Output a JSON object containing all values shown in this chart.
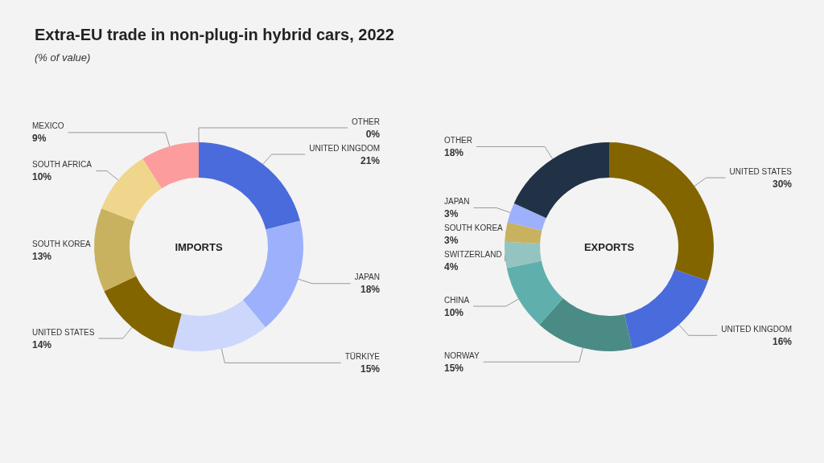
{
  "chart_data": [
    {
      "type": "donut",
      "title": "Extra-EU trade in non-plug-in hybrid cars, 2022",
      "subtitle": "(% of value)",
      "annotations": [
        "IMPORTS"
      ],
      "categories": [
        "UNITED KINGDOM",
        "JAPAN",
        "TÜRKIYE",
        "UNITED STATES",
        "SOUTH KOREA",
        "SOUTH AFRICA",
        "MEXICO",
        "OTHER"
      ],
      "values": [
        21,
        18,
        15,
        14,
        13,
        10,
        9,
        0
      ],
      "value_labels": [
        "21%",
        "18%",
        "15%",
        "14%",
        "13%",
        "10%",
        "9%",
        "0%"
      ],
      "colors": [
        "#4a6bdb",
        "#9db0fb",
        "#cdd7fb",
        "#836500",
        "#c8b25f",
        "#f0d58c",
        "#fc9c9c",
        "#223246"
      ]
    },
    {
      "type": "donut",
      "annotations": [
        "EXPORTS"
      ],
      "categories": [
        "UNITED STATES",
        "UNITED KINGDOM",
        "NORWAY",
        "CHINA",
        "SWITZERLAND",
        "SOUTH KOREA",
        "JAPAN",
        "OTHER"
      ],
      "values": [
        30,
        16,
        15,
        10,
        4,
        3,
        3,
        18
      ],
      "value_labels": [
        "30%",
        "16%",
        "15%",
        "10%",
        "4%",
        "3%",
        "3%",
        "18%"
      ],
      "colors": [
        "#836500",
        "#4a6bdb",
        "#4a8c85",
        "#5fb0ac",
        "#93c4c0",
        "#c8b25f",
        "#9db0fb",
        "#223246"
      ]
    }
  ]
}
